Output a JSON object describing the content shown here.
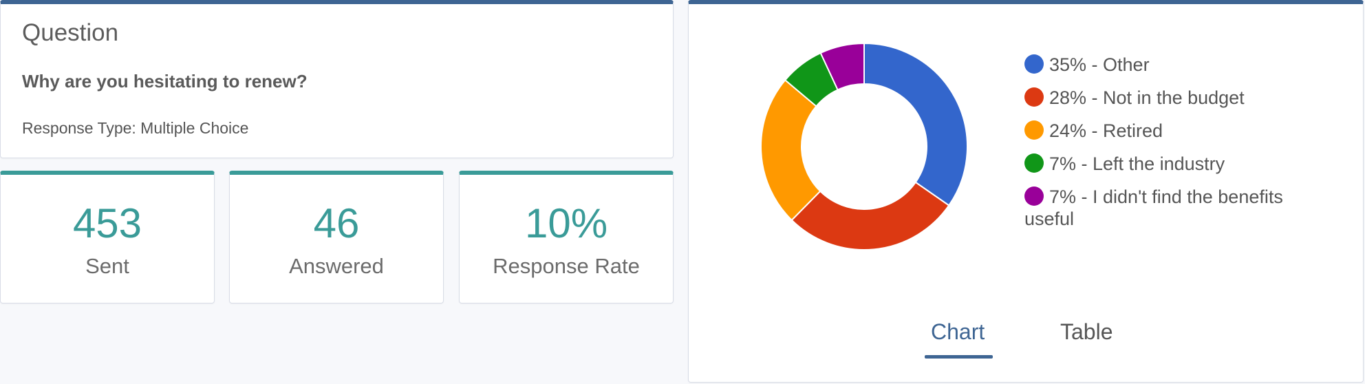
{
  "question": {
    "heading": "Question",
    "text": "Why are you hesitating to renew?",
    "response_type": "Response Type: Multiple Choice"
  },
  "stats": [
    {
      "value": "453",
      "label": "Sent"
    },
    {
      "value": "46",
      "label": "Answered"
    },
    {
      "value": "10%",
      "label": "Response Rate"
    }
  ],
  "chart_data": {
    "type": "pie",
    "categories": [
      "Other",
      "Not in the budget",
      "Retired",
      "Left the industry",
      "I didn't find the benefits useful"
    ],
    "values": [
      35,
      28,
      24,
      7,
      7
    ],
    "colors": [
      "#3366cc",
      "#dc3912",
      "#ff9900",
      "#109618",
      "#990099"
    ],
    "legend": [
      "35% - Other",
      "28% - Not in the budget",
      "24% - Retired",
      "7% - Left the industry",
      "7% - I didn't find the benefits useful"
    ],
    "legend_position": "right"
  },
  "tabs": {
    "chart": "Chart",
    "table": "Table",
    "active": "chart"
  }
}
